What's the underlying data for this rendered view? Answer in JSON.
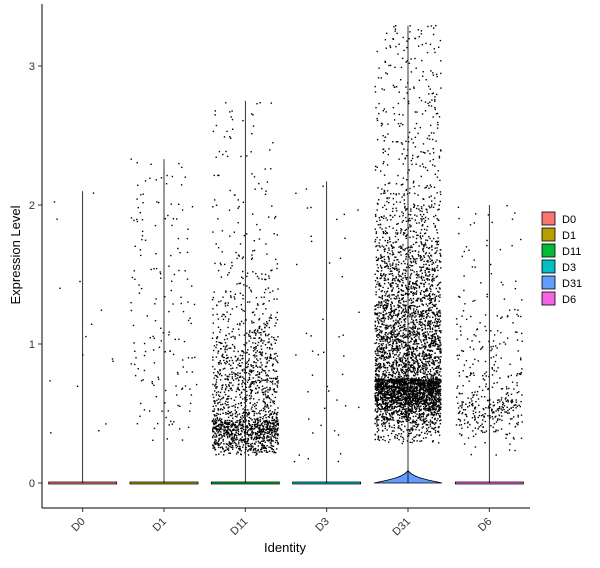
{
  "chart_data": {
    "type": "violin",
    "xlabel": "Identity",
    "ylabel": "Expression Level",
    "categories": [
      "D0",
      "D1",
      "D11",
      "D3",
      "D31",
      "D6"
    ],
    "ylim": [
      -0.15,
      3.3
    ],
    "yticks": [
      0,
      1,
      2,
      3
    ],
    "legend_position": "right",
    "series": [
      {
        "name": "D0",
        "color": "#F8766D",
        "max": 2.1,
        "n_points": 16,
        "y_low": 0.35,
        "y_high": 2.1,
        "violin_bulge": 0.0
      },
      {
        "name": "D1",
        "color": "#B79F00",
        "max": 2.33,
        "n_points": 170,
        "y_low": 0.3,
        "y_high": 2.33,
        "violin_bulge": 0.0
      },
      {
        "name": "D11",
        "color": "#00BA38",
        "max": 2.75,
        "n_points": 1700,
        "y_low": 0.2,
        "y_high": 2.75,
        "violin_bulge": 0.0
      },
      {
        "name": "D3",
        "color": "#00BFC4",
        "max": 2.17,
        "n_points": 45,
        "y_low": 0.15,
        "y_high": 2.17,
        "violin_bulge": 0.0
      },
      {
        "name": "D31",
        "color": "#619CFF",
        "max": 3.29,
        "n_points": 4500,
        "y_low": 0.28,
        "y_high": 3.29,
        "violin_bulge": 0.09
      },
      {
        "name": "D6",
        "color": "#F564E3",
        "max": 2.0,
        "n_points": 420,
        "y_low": 0.2,
        "y_high": 2.0,
        "violin_bulge": 0.0
      }
    ]
  }
}
